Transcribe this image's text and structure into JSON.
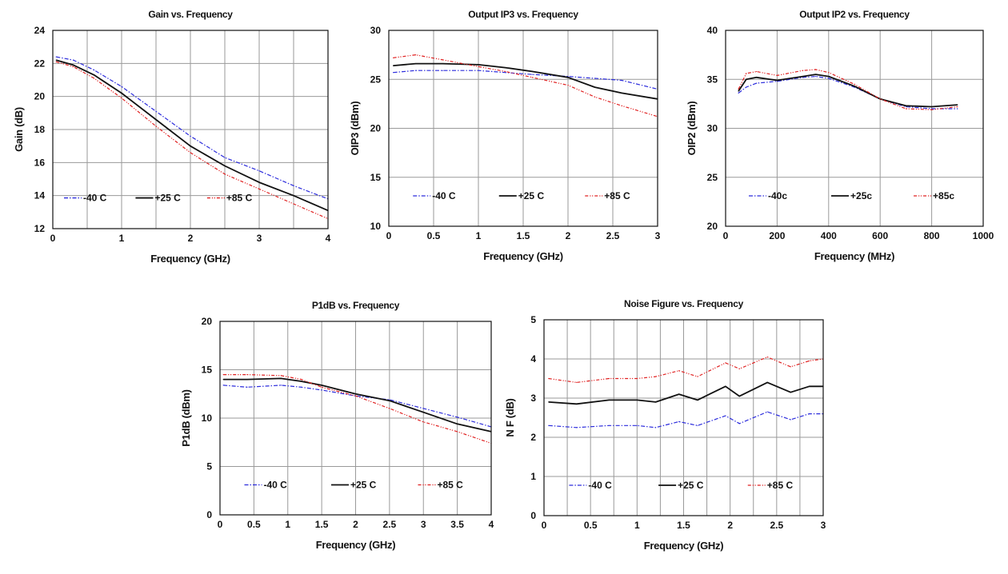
{
  "chart_data": [
    {
      "type": "line",
      "title": "Gain vs. Frequency",
      "xlabel": "Frequency (GHz)",
      "ylabel": "Gain (dB)",
      "xlim": [
        0,
        4
      ],
      "ylim": [
        12,
        24
      ],
      "xticks": [
        "0",
        "1",
        "2",
        "3",
        "4"
      ],
      "yticks": [
        "12",
        "14",
        "16",
        "18",
        "20",
        "22",
        "24"
      ],
      "x_grid": [
        0,
        0.5,
        1,
        1.5,
        2,
        2.5,
        3,
        3.5,
        4
      ],
      "y_grid": [
        12,
        14,
        16,
        18,
        20,
        22,
        24
      ],
      "legend": "bottom-left",
      "series": [
        {
          "name": "-40 C",
          "color": "#2b2bdc",
          "dash": "dashdot",
          "x": [
            0.05,
            0.3,
            0.6,
            1.0,
            1.5,
            2.0,
            2.5,
            3.0,
            3.5,
            4.0
          ],
          "y": [
            22.4,
            22.2,
            21.6,
            20.6,
            19.1,
            17.6,
            16.3,
            15.5,
            14.6,
            13.8
          ]
        },
        {
          "name": "+25 C",
          "color": "#111111",
          "dash": "solid",
          "x": [
            0.05,
            0.3,
            0.6,
            1.0,
            1.5,
            2.0,
            2.5,
            3.0,
            3.5,
            4.0
          ],
          "y": [
            22.2,
            21.9,
            21.3,
            20.2,
            18.6,
            17.0,
            15.8,
            14.8,
            14.0,
            13.1
          ]
        },
        {
          "name": "+85 C",
          "color": "#e02020",
          "dash": "dashdotdot",
          "x": [
            0.05,
            0.3,
            0.6,
            1.0,
            1.5,
            2.0,
            2.5,
            3.0,
            3.5,
            4.0
          ],
          "y": [
            22.1,
            21.8,
            21.1,
            19.9,
            18.2,
            16.6,
            15.3,
            14.4,
            13.5,
            12.6
          ]
        }
      ]
    },
    {
      "type": "line",
      "title": "Output IP3 vs. Frequency",
      "xlabel": "Frequency (GHz)",
      "ylabel": "OIP3 (dBm)",
      "xlim": [
        0,
        3
      ],
      "ylim": [
        10,
        30
      ],
      "xticks": [
        "0",
        "0.5",
        "1",
        "1.5",
        "2",
        "2.5",
        "3"
      ],
      "yticks": [
        "10",
        "15",
        "20",
        "25",
        "30"
      ],
      "x_grid": [
        0,
        0.5,
        1,
        1.5,
        2,
        2.5,
        3
      ],
      "y_grid": [
        10,
        15,
        20,
        25,
        30
      ],
      "legend": "bottom",
      "series": [
        {
          "name": "-40 C",
          "color": "#2b2bdc",
          "dash": "dashdot",
          "x": [
            0.05,
            0.3,
            0.6,
            1.0,
            1.3,
            1.6,
            2.0,
            2.3,
            2.6,
            3.0
          ],
          "y": [
            25.7,
            25.9,
            25.9,
            25.9,
            25.7,
            25.5,
            25.3,
            25.1,
            24.9,
            24.0
          ]
        },
        {
          "name": "+25 C",
          "color": "#111111",
          "dash": "solid",
          "x": [
            0.05,
            0.3,
            0.6,
            1.0,
            1.3,
            1.6,
            2.0,
            2.3,
            2.6,
            3.0
          ],
          "y": [
            26.4,
            26.6,
            26.6,
            26.5,
            26.2,
            25.8,
            25.2,
            24.2,
            23.6,
            23.0
          ]
        },
        {
          "name": "+85 C",
          "color": "#e02020",
          "dash": "dashdotdot",
          "x": [
            0.05,
            0.3,
            0.6,
            1.0,
            1.3,
            1.6,
            2.0,
            2.3,
            2.6,
            3.0
          ],
          "y": [
            27.2,
            27.5,
            27.0,
            26.3,
            25.8,
            25.2,
            24.4,
            23.2,
            22.3,
            21.2
          ]
        }
      ]
    },
    {
      "type": "line",
      "title": "Output IP2 vs. Frequency",
      "xlabel": "Frequency (MHz)",
      "ylabel": "OIP2 (dBm)",
      "xlim": [
        0,
        1000
      ],
      "ylim": [
        20,
        40
      ],
      "xticks": [
        "0",
        "200",
        "400",
        "600",
        "800",
        "1000"
      ],
      "yticks": [
        "20",
        "25",
        "30",
        "35",
        "40"
      ],
      "x_grid": [
        0,
        200,
        400,
        600,
        800,
        1000
      ],
      "y_grid": [
        20,
        25,
        30,
        35,
        40
      ],
      "legend": "bottom",
      "series": [
        {
          "name": "-40c",
          "color": "#2b2bdc",
          "dash": "dashdot",
          "x": [
            50,
            80,
            120,
            200,
            300,
            350,
            400,
            500,
            600,
            700,
            800,
            900
          ],
          "y": [
            33.6,
            34.2,
            34.6,
            34.8,
            35.2,
            35.3,
            35.1,
            34.2,
            33.0,
            32.2,
            32.0,
            32.0
          ]
        },
        {
          "name": "+25c",
          "color": "#111111",
          "dash": "solid",
          "x": [
            50,
            80,
            120,
            200,
            300,
            350,
            400,
            500,
            600,
            700,
            800,
            900
          ],
          "y": [
            33.8,
            35.0,
            35.2,
            34.9,
            35.3,
            35.5,
            35.3,
            34.3,
            33.0,
            32.3,
            32.2,
            32.4
          ]
        },
        {
          "name": "+85c",
          "color": "#e02020",
          "dash": "dashdotdot",
          "x": [
            50,
            80,
            120,
            200,
            300,
            350,
            400,
            500,
            600,
            700,
            800,
            900
          ],
          "y": [
            34.0,
            35.6,
            35.8,
            35.4,
            35.9,
            36.0,
            35.7,
            34.5,
            33.0,
            32.0,
            31.9,
            32.2
          ]
        }
      ]
    },
    {
      "type": "line",
      "title": "P1dB vs. Frequency",
      "xlabel": "Frequency (GHz)",
      "ylabel": "P1dB (dBm)",
      "xlim": [
        0,
        4
      ],
      "ylim": [
        0,
        20
      ],
      "xticks": [
        "0",
        "0.5",
        "1",
        "1.5",
        "2",
        "2.5",
        "3",
        "3.5",
        "4"
      ],
      "yticks": [
        "0",
        "5",
        "10",
        "15",
        "20"
      ],
      "x_grid": [
        0,
        0.5,
        1,
        1.5,
        2,
        2.5,
        3,
        3.5,
        4
      ],
      "y_grid": [
        0,
        5,
        10,
        15,
        20
      ],
      "legend": "bottom",
      "series": [
        {
          "name": "-40 C",
          "color": "#2b2bdc",
          "dash": "dashdot",
          "x": [
            0.05,
            0.4,
            0.9,
            1.2,
            1.5,
            2.0,
            2.5,
            3.0,
            3.5,
            4.0
          ],
          "y": [
            13.4,
            13.2,
            13.4,
            13.2,
            12.9,
            12.3,
            11.9,
            11.0,
            10.1,
            9.1
          ]
        },
        {
          "name": "+25 C",
          "color": "#111111",
          "dash": "solid",
          "x": [
            0.05,
            0.4,
            0.9,
            1.2,
            1.5,
            2.0,
            2.5,
            3.0,
            3.5,
            4.0
          ],
          "y": [
            14.0,
            14.0,
            14.1,
            13.8,
            13.4,
            12.5,
            11.8,
            10.6,
            9.4,
            8.6
          ]
        },
        {
          "name": "+85 C",
          "color": "#e02020",
          "dash": "dashdotdot",
          "x": [
            0.05,
            0.4,
            0.9,
            1.2,
            1.5,
            2.0,
            2.5,
            3.0,
            3.5,
            4.0
          ],
          "y": [
            14.5,
            14.5,
            14.4,
            14.0,
            13.2,
            12.3,
            11.0,
            9.6,
            8.6,
            7.4
          ]
        }
      ]
    },
    {
      "type": "line",
      "title": "Noise Figure vs. Frequency",
      "xlabel": "Frequency (GHz)",
      "ylabel": "N F (dB)",
      "xlim": [
        0,
        3
      ],
      "ylim": [
        0,
        5
      ],
      "xticks": [
        "0",
        "0.5",
        "1",
        "1.5",
        "2",
        "2.5",
        "3"
      ],
      "yticks": [
        "0",
        "1",
        "2",
        "3",
        "4",
        "5"
      ],
      "x_grid": [
        0,
        0.25,
        0.5,
        0.75,
        1,
        1.25,
        1.5,
        1.75,
        2,
        2.25,
        2.5,
        2.75,
        3
      ],
      "y_grid": [
        0,
        1,
        2,
        3,
        4,
        5
      ],
      "legend": "bottom",
      "series": [
        {
          "name": "-40 C",
          "color": "#2b2bdc",
          "dash": "dashdot",
          "x": [
            0.05,
            0.35,
            0.7,
            1.0,
            1.2,
            1.45,
            1.65,
            1.95,
            2.1,
            2.4,
            2.65,
            2.85,
            3.0
          ],
          "y": [
            2.3,
            2.25,
            2.3,
            2.3,
            2.25,
            2.4,
            2.3,
            2.55,
            2.35,
            2.65,
            2.45,
            2.6,
            2.6
          ]
        },
        {
          "name": "+25 C",
          "color": "#111111",
          "dash": "solid",
          "x": [
            0.05,
            0.35,
            0.7,
            1.0,
            1.2,
            1.45,
            1.65,
            1.95,
            2.1,
            2.4,
            2.65,
            2.85,
            3.0
          ],
          "y": [
            2.9,
            2.85,
            2.95,
            2.95,
            2.9,
            3.1,
            2.95,
            3.3,
            3.05,
            3.4,
            3.15,
            3.3,
            3.3
          ]
        },
        {
          "name": "+85 C",
          "color": "#e02020",
          "dash": "dashdotdot",
          "x": [
            0.05,
            0.35,
            0.7,
            1.0,
            1.2,
            1.45,
            1.65,
            1.95,
            2.1,
            2.4,
            2.65,
            2.85,
            3.0
          ],
          "y": [
            3.5,
            3.4,
            3.5,
            3.5,
            3.55,
            3.7,
            3.55,
            3.9,
            3.75,
            4.05,
            3.8,
            3.95,
            4.0
          ]
        }
      ]
    }
  ]
}
